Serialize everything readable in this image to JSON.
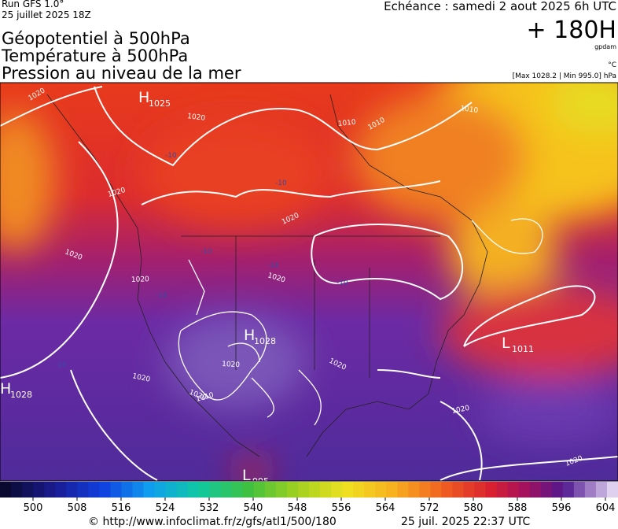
{
  "header": {
    "run": "Run GFS 1.0°",
    "run_date": "25 juillet 2025 18Z",
    "valid": "Echéance : samedi 2 aout 2025 6h UTC",
    "lead": "+ 180H",
    "unit_geo": "gpdam",
    "unit_temp": "°C",
    "extremes": "[Max 1028.2 | Min 995.0] hPa",
    "titles": [
      "Géopotentiel à 500hPa",
      "Température à 500hPa",
      "Pression au niveau de la mer"
    ]
  },
  "map": {
    "centers": [
      {
        "letter": "H",
        "value": "1025"
      },
      {
        "letter": "H",
        "value": "1028"
      },
      {
        "letter": "H",
        "value": "1028"
      },
      {
        "letter": "L",
        "value": "1011"
      },
      {
        "letter": "L",
        "value": "995"
      }
    ],
    "isobar_labels": [
      "1020",
      "1020",
      "1020",
      "1020",
      "1020",
      "1020",
      "1020",
      "1020",
      "1020",
      "1020",
      "1020",
      "1020",
      "1010",
      "1010",
      "1010",
      "1010",
      "1020"
    ],
    "isotherm_labels": [
      "-10",
      "-10",
      "-10",
      "-10",
      "-10",
      "-10",
      "-10"
    ]
  },
  "scale": {
    "ticks": [
      500,
      508,
      516,
      524,
      532,
      540,
      548,
      556,
      564,
      572,
      580,
      588,
      596,
      604
    ]
  },
  "footer": {
    "source": "© http://www.infoclimat.fr/z/gfs/atl1/500/180",
    "generated": "25 juil. 2025 22:37 UTC"
  }
}
